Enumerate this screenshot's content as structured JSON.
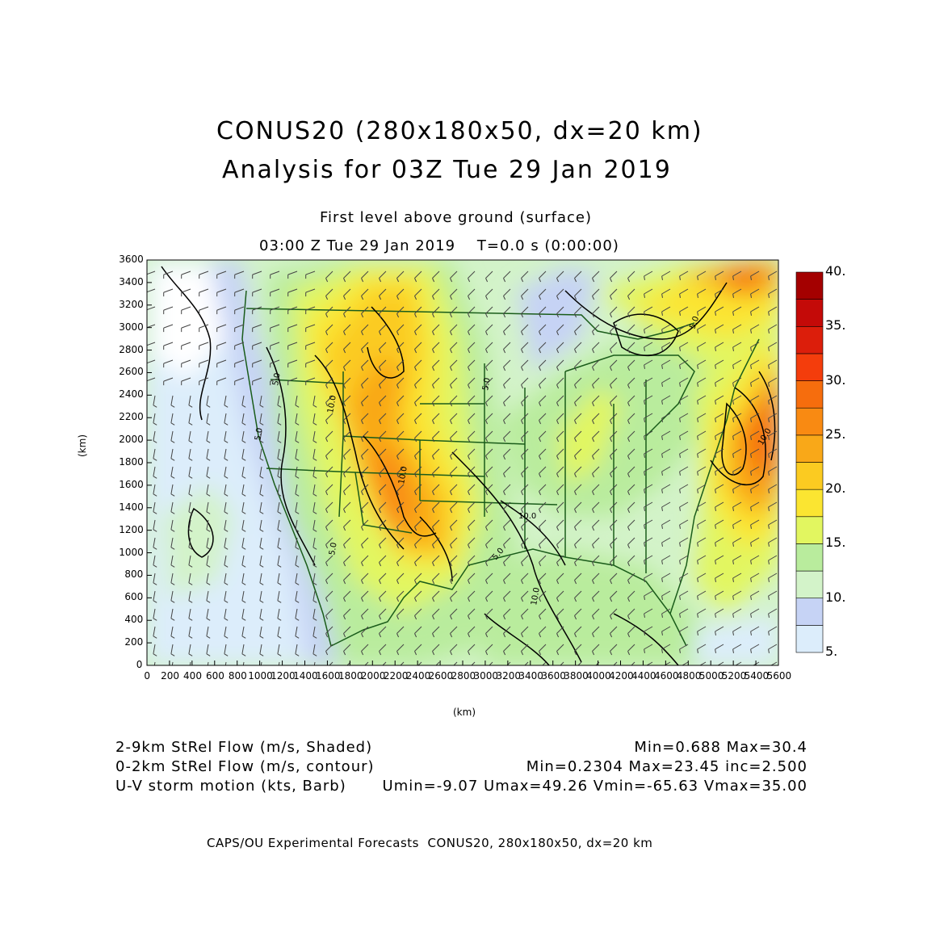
{
  "header": {
    "title_line1": "CONUS20 (280x180x50, dx=20 km)",
    "title_line2": "Analysis for 03Z Tue 29 Jan 2019",
    "subtitle_line1": "First level above ground (surface)",
    "subtitle_line2": "03:00 Z Tue 29 Jan 2019    T=0.0 s (0:00:00)"
  },
  "axes": {
    "x_label": "(km)",
    "y_label": "(km)",
    "x_range": [
      0,
      5600
    ],
    "y_range": [
      0,
      3600
    ],
    "x_ticks": [
      "0",
      "200",
      "400",
      "600",
      "800",
      "1000",
      "1200",
      "1400",
      "1600",
      "1800",
      "2000",
      "2200",
      "2400",
      "2600",
      "2800",
      "3000",
      "3200",
      "3400",
      "3600",
      "3800",
      "4000",
      "4200",
      "4400",
      "4600",
      "4800",
      "5000",
      "5200",
      "5400",
      "5600"
    ],
    "y_ticks": [
      "0",
      "200",
      "400",
      "600",
      "800",
      "1000",
      "1200",
      "1400",
      "1600",
      "1800",
      "2000",
      "2200",
      "2400",
      "2600",
      "2800",
      "3000",
      "3200",
      "3400",
      "3600"
    ]
  },
  "colorbar": {
    "labels": [
      "5.",
      "10.",
      "15.",
      "20.",
      "25.",
      "30.",
      "35.",
      "40."
    ],
    "colors": [
      "#dcedfb",
      "#c6d3f5",
      "#d3f3c9",
      "#b9ec9d",
      "#e2f660",
      "#fbe531",
      "#fbcb21",
      "#f9a818",
      "#f98a12",
      "#f66d0d",
      "#f43d0c",
      "#dc1e0b",
      "#c40a08",
      "#a40000"
    ]
  },
  "contour_labels": [
    "5.0",
    "10.0",
    "5.0",
    "5.0",
    "10.0",
    "10.0",
    "5.0",
    "5.0",
    "10.0",
    "10.0",
    "5.0"
  ],
  "legend": {
    "line1_left": "2-9km StRel Flow (m/s, Shaded)",
    "line1_right": "Min=0.688 Max=30.4",
    "line2_left": "0-2km StRel Flow (m/s, contour)",
    "line2_right": "Min=0.2304 Max=23.45 inc=2.500",
    "line3_left": "U-V storm motion (kts, Barb)",
    "line3_right": "Umin=-9.07 Umax=49.26 Vmin=-65.63 Vmax=35.00"
  },
  "footer": "CAPS/OU Experimental Forecasts  CONUS20, 280x180x50, dx=20 km",
  "colors": {
    "map_lines": "#1a5c1a",
    "contours": "#000000"
  }
}
